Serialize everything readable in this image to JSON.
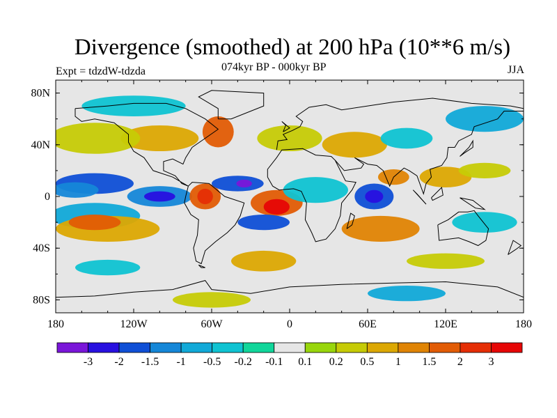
{
  "chart_data": {
    "type": "heatmap",
    "title": "Divergence (smoothed) at 200 hPa (10**6 m/s)",
    "subtitle_center": "074kyr BP - 000kyr BP",
    "subtitle_left": "Expt = tdzdW-tdzda",
    "subtitle_right": "JJA",
    "x_range": [
      -180,
      180
    ],
    "y_range": [
      -90,
      90
    ],
    "x_ticks": [
      {
        "value": -180,
        "label": "180"
      },
      {
        "value": -120,
        "label": "120W"
      },
      {
        "value": -60,
        "label": "60W"
      },
      {
        "value": 0,
        "label": "0"
      },
      {
        "value": 60,
        "label": "60E"
      },
      {
        "value": 120,
        "label": "120E"
      },
      {
        "value": 180,
        "label": "180"
      }
    ],
    "y_ticks": [
      {
        "value": 80,
        "label": "80N"
      },
      {
        "value": 40,
        "label": "40N"
      },
      {
        "value": 0,
        "label": "0"
      },
      {
        "value": -40,
        "label": "40S"
      },
      {
        "value": -80,
        "label": "80S"
      }
    ],
    "colorbar": {
      "levels": [
        "-3",
        "-2",
        "-1.5",
        "-1",
        "-0.5",
        "-0.2",
        "-0.1",
        "0.1",
        "0.2",
        "0.5",
        "1",
        "1.5",
        "2",
        "3"
      ],
      "colors": [
        "#7a16d9",
        "#2810e0",
        "#0f4fd6",
        "#1587d8",
        "#11a9d8",
        "#0fc3d2",
        "#10d69a",
        "#e6e6e6",
        "#98d60c",
        "#c6cb06",
        "#dca803",
        "#e08404",
        "#e25c05",
        "#e52e05",
        "#e60606"
      ]
    },
    "field_blobs": [
      {
        "lon": -150,
        "lat": 10,
        "rx": 30,
        "ry": 8,
        "level": 2
      },
      {
        "lon": -165,
        "lat": 5,
        "rx": 18,
        "ry": 6,
        "level": 3
      },
      {
        "lon": -150,
        "lat": -15,
        "rx": 35,
        "ry": 10,
        "level": 4
      },
      {
        "lon": -140,
        "lat": -25,
        "rx": 40,
        "ry": 10,
        "level": 10
      },
      {
        "lon": -150,
        "lat": -20,
        "rx": 20,
        "ry": 6,
        "level": 12
      },
      {
        "lon": -100,
        "lat": 0,
        "rx": 25,
        "ry": 8,
        "level": 3
      },
      {
        "lon": -100,
        "lat": 0,
        "rx": 12,
        "ry": 4,
        "level": 1
      },
      {
        "lon": -65,
        "lat": 0,
        "rx": 12,
        "ry": 10,
        "level": 12
      },
      {
        "lon": -65,
        "lat": 0,
        "rx": 6,
        "ry": 6,
        "level": 13
      },
      {
        "lon": -40,
        "lat": 10,
        "rx": 20,
        "ry": 6,
        "level": 2
      },
      {
        "lon": -35,
        "lat": 10,
        "rx": 6,
        "ry": 3,
        "level": 0
      },
      {
        "lon": -10,
        "lat": -5,
        "rx": 20,
        "ry": 10,
        "level": 12
      },
      {
        "lon": -10,
        "lat": -8,
        "rx": 10,
        "ry": 6,
        "level": 14
      },
      {
        "lon": -20,
        "lat": -20,
        "rx": 20,
        "ry": 6,
        "level": 2
      },
      {
        "lon": 20,
        "lat": 5,
        "rx": 25,
        "ry": 10,
        "level": 5
      },
      {
        "lon": 65,
        "lat": 0,
        "rx": 15,
        "ry": 10,
        "level": 2
      },
      {
        "lon": 65,
        "lat": 0,
        "rx": 7,
        "ry": 5,
        "level": 1
      },
      {
        "lon": 80,
        "lat": 15,
        "rx": 12,
        "ry": 6,
        "level": 11
      },
      {
        "lon": 70,
        "lat": -25,
        "rx": 30,
        "ry": 10,
        "level": 11
      },
      {
        "lon": 120,
        "lat": 15,
        "rx": 20,
        "ry": 8,
        "level": 10
      },
      {
        "lon": 150,
        "lat": 20,
        "rx": 20,
        "ry": 6,
        "level": 9
      },
      {
        "lon": 150,
        "lat": -20,
        "rx": 25,
        "ry": 8,
        "level": 5
      },
      {
        "lon": -100,
        "lat": 45,
        "rx": 30,
        "ry": 10,
        "level": 10
      },
      {
        "lon": -55,
        "lat": 50,
        "rx": 12,
        "ry": 12,
        "level": 12
      },
      {
        "lon": -150,
        "lat": 45,
        "rx": 35,
        "ry": 12,
        "level": 9
      },
      {
        "lon": -120,
        "lat": 70,
        "rx": 40,
        "ry": 8,
        "level": 5
      },
      {
        "lon": 0,
        "lat": 45,
        "rx": 25,
        "ry": 10,
        "level": 9
      },
      {
        "lon": 50,
        "lat": 40,
        "rx": 25,
        "ry": 10,
        "level": 10
      },
      {
        "lon": 90,
        "lat": 45,
        "rx": 20,
        "ry": 8,
        "level": 5
      },
      {
        "lon": 150,
        "lat": 60,
        "rx": 30,
        "ry": 10,
        "level": 4
      },
      {
        "lon": -20,
        "lat": -50,
        "rx": 25,
        "ry": 8,
        "level": 10
      },
      {
        "lon": 120,
        "lat": -50,
        "rx": 30,
        "ry": 6,
        "level": 9
      },
      {
        "lon": -140,
        "lat": -55,
        "rx": 25,
        "ry": 6,
        "level": 5
      },
      {
        "lon": 90,
        "lat": -75,
        "rx": 30,
        "ry": 6,
        "level": 4
      },
      {
        "lon": -60,
        "lat": -80,
        "rx": 30,
        "ry": 6,
        "level": 9
      }
    ]
  }
}
